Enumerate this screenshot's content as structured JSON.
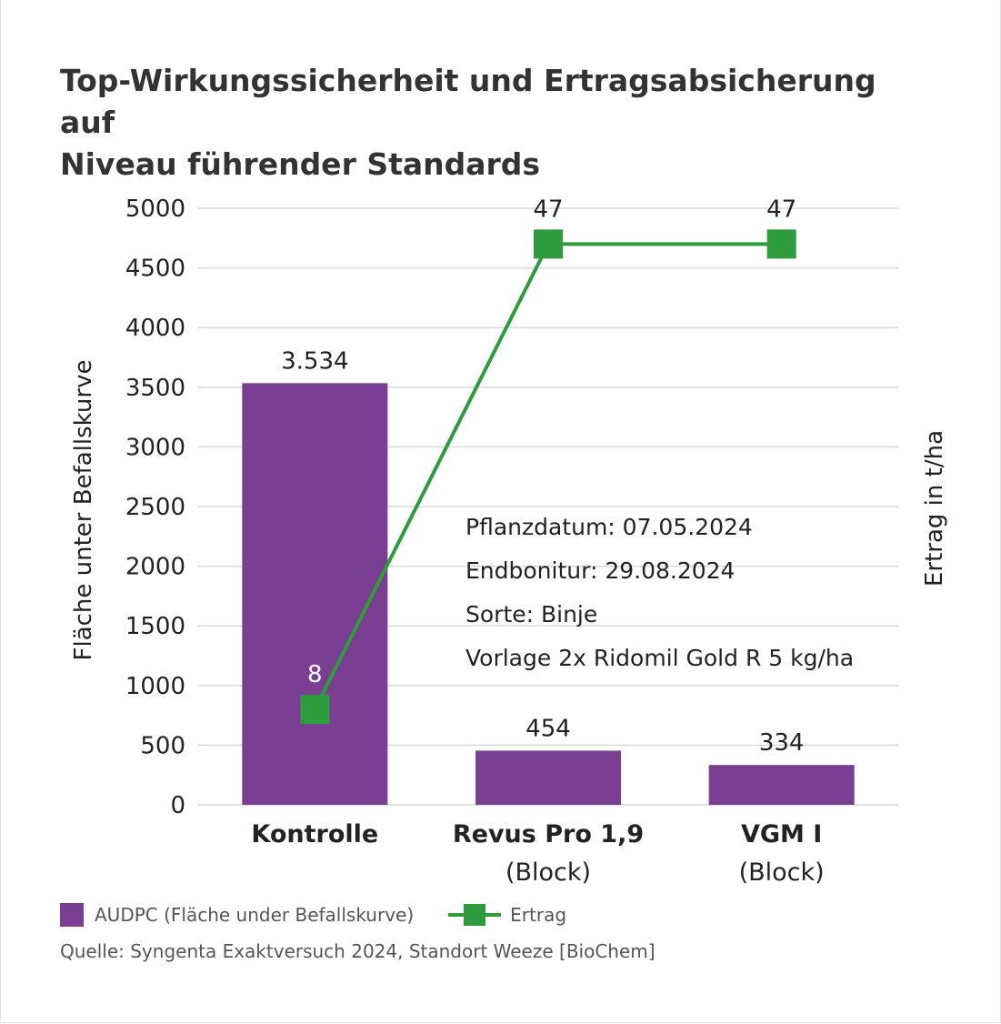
{
  "title_lines": [
    "Top-Wirkungssicherheit und Ertragsabsicherung auf",
    "Niveau führender Standards"
  ],
  "notes": [
    "Pflanzdatum: 07.05.2024",
    "Endbonitur: 29.08.2024",
    "Sorte: Binje",
    "Vorlage 2x Ridomil Gold R 5 kg/ha"
  ],
  "source": "Quelle: Syngenta Exaktversuch 2024, Standort Weeze [BioChem]",
  "legend": {
    "bar_label": "AUDPC (Fläche under Befallskurve)",
    "line_label": "Ertrag"
  },
  "colors": {
    "bar": "#7a3e92",
    "line": "#2e9b3c",
    "grid": "#d9d9d9",
    "text": "#222222"
  },
  "chart_data": {
    "type": "bar",
    "categories": [
      [
        "Kontrolle"
      ],
      [
        "Revus Pro 1,9",
        "(Block)"
      ],
      [
        "VGM I",
        "(Block)"
      ]
    ],
    "series": [
      {
        "name": "AUDPC (Fläche under Befallskurve)",
        "type": "bar",
        "axis": "left",
        "values": [
          3534,
          454,
          334
        ],
        "labels": [
          "3.534",
          "454",
          "334"
        ]
      },
      {
        "name": "Ertrag",
        "type": "line",
        "axis": "right",
        "values": [
          8,
          47,
          47
        ],
        "labels": [
          "8",
          "47",
          "47"
        ]
      }
    ],
    "ylabel": "Fläche unter Befallskurve",
    "y2label": "Ertrag in t/ha",
    "ylim": [
      0,
      5000
    ],
    "yticks": [
      0,
      500,
      1000,
      1500,
      2000,
      2500,
      3000,
      3500,
      4000,
      4500,
      5000
    ],
    "y2lim": [
      0,
      50
    ],
    "grid": true,
    "legend_position": "bottom-left"
  }
}
